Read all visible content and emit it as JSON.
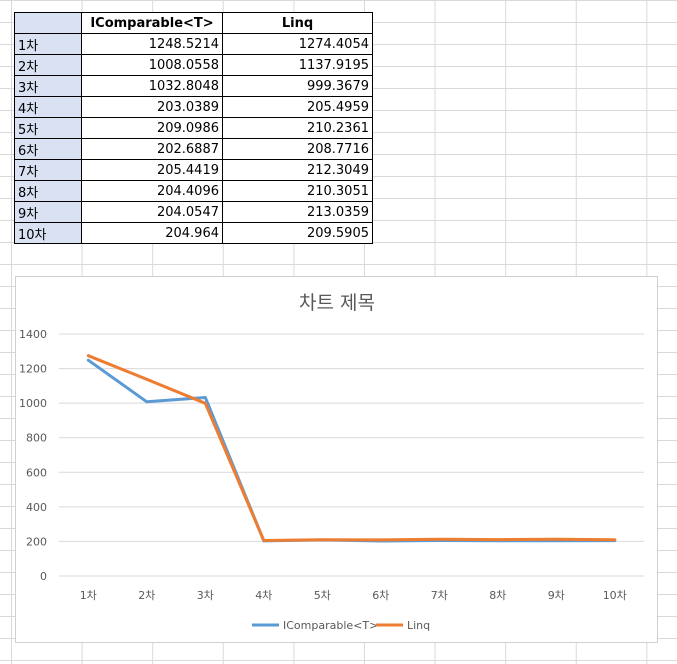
{
  "table": {
    "headers": [
      "",
      "IComparable<T>",
      "Linq"
    ],
    "rows": [
      {
        "label": "1차",
        "a": "1248.5214",
        "b": "1274.4054"
      },
      {
        "label": "2차",
        "a": "1008.0558",
        "b": "1137.9195"
      },
      {
        "label": "3차",
        "a": "1032.8048",
        "b": "999.3679"
      },
      {
        "label": "4차",
        "a": "203.0389",
        "b": "205.4959"
      },
      {
        "label": "5차",
        "a": "209.0986",
        "b": "210.2361"
      },
      {
        "label": "6차",
        "a": "202.6887",
        "b": "208.7716"
      },
      {
        "label": "7차",
        "a": "205.4419",
        "b": "212.3049"
      },
      {
        "label": "8차",
        "a": "204.4096",
        "b": "210.3051"
      },
      {
        "label": "9차",
        "a": "204.0547",
        "b": "213.0359"
      },
      {
        "label": "10차",
        "a": "204.964",
        "b": "209.5905"
      }
    ]
  },
  "chart_data": {
    "type": "line",
    "title": "차트 제목",
    "categories": [
      "1차",
      "2차",
      "3차",
      "4차",
      "5차",
      "6차",
      "7차",
      "8차",
      "9차",
      "10차"
    ],
    "series": [
      {
        "name": "IComparable<T>",
        "color": "#5b9bd5",
        "values": [
          1248.5214,
          1008.0558,
          1032.8048,
          203.0389,
          209.0986,
          202.6887,
          205.4419,
          204.4096,
          204.0547,
          204.964
        ]
      },
      {
        "name": "Linq",
        "color": "#ed7d31",
        "values": [
          1274.4054,
          1137.9195,
          999.3679,
          205.4959,
          210.2361,
          208.7716,
          212.3049,
          210.3051,
          213.0359,
          209.5905
        ]
      }
    ],
    "ylim": [
      0,
      1400
    ],
    "yticks": [
      0,
      200,
      400,
      600,
      800,
      1000,
      1200,
      1400
    ],
    "grid": true,
    "legend": "bottom",
    "gridColor": "#d9d9d9"
  }
}
